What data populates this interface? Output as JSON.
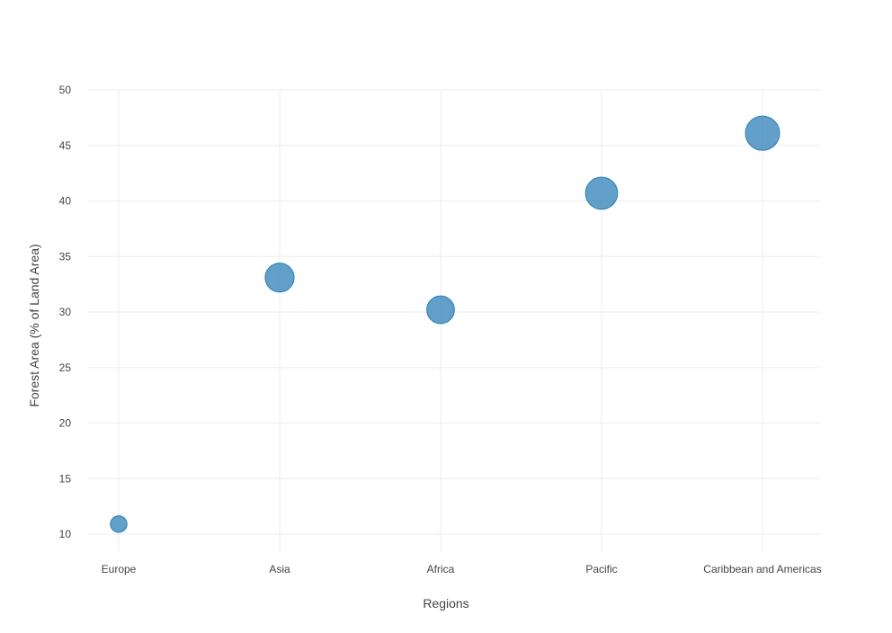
{
  "chart_data": {
    "type": "scatter",
    "title": "",
    "xlabel": "Regions",
    "ylabel": "Forest Area (% of Land Area)",
    "categories": [
      "Europe",
      "Asia",
      "Africa",
      "Pacific",
      "Caribbean and Americas"
    ],
    "series": [
      {
        "values": [
          10.9,
          33.1,
          30.2,
          40.7,
          46.1
        ],
        "sizes": [
          10.9,
          33.1,
          30.2,
          40.7,
          46.1
        ]
      }
    ],
    "ylim": [
      8.3,
      50
    ],
    "yticks": [
      10,
      15,
      20,
      25,
      30,
      35,
      40,
      45,
      50
    ],
    "grid": true,
    "legend": "none",
    "colors": {
      "marker": "#1f77b4",
      "grid": "#eeeeee",
      "text": "#444444"
    }
  }
}
